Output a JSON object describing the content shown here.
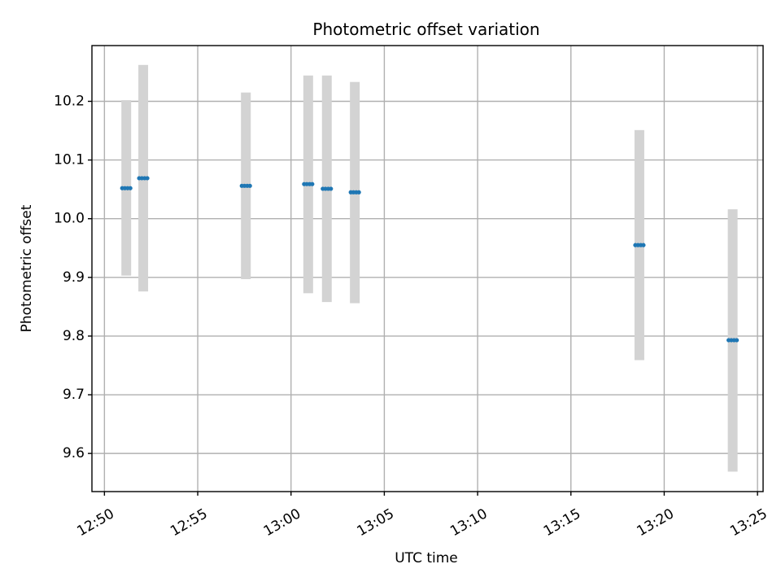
{
  "chart_data": {
    "type": "scatter",
    "title": "Photometric offset variation",
    "xlabel": "UTC time",
    "ylabel": "Photometric offset",
    "x_ticks": [
      "12:50",
      "12:55",
      "13:00",
      "13:05",
      "13:10",
      "13:15",
      "13:20",
      "13:25"
    ],
    "x_tick_minutes": [
      0,
      5,
      10,
      15,
      20,
      25,
      30,
      35
    ],
    "x_range_labels": [
      "12:49:20",
      "13:25:20"
    ],
    "xlim_minutes": [
      -0.67,
      35.3
    ],
    "y_ticks": [
      "9.6",
      "9.7",
      "9.8",
      "9.9",
      "10.0",
      "10.1",
      "10.2"
    ],
    "y_tick_values": [
      9.6,
      9.7,
      9.8,
      9.9,
      10.0,
      10.1,
      10.2
    ],
    "ylim": [
      9.535,
      10.295
    ],
    "grid": true,
    "error_color": "#d3d3d3",
    "point_color": "#1f77b4",
    "series": [
      {
        "points": [
          {
            "time": "12:51:10",
            "minute": 1.17,
            "value": 10.052,
            "low": 9.903,
            "high": 10.202
          },
          {
            "time": "12:52:05",
            "minute": 2.08,
            "value": 10.069,
            "low": 9.876,
            "high": 10.262
          },
          {
            "time": "12:57:35",
            "minute": 7.58,
            "value": 10.056,
            "low": 9.897,
            "high": 10.215
          },
          {
            "time": "13:00:55",
            "minute": 10.92,
            "value": 10.059,
            "low": 9.873,
            "high": 10.244
          },
          {
            "time": "13:01:55",
            "minute": 11.92,
            "value": 10.051,
            "low": 9.858,
            "high": 10.244
          },
          {
            "time": "13:03:25",
            "minute": 13.42,
            "value": 10.045,
            "low": 9.856,
            "high": 10.233
          },
          {
            "time": "13:18:40",
            "minute": 28.67,
            "value": 9.955,
            "low": 9.759,
            "high": 10.151
          },
          {
            "time": "13:23:40",
            "minute": 33.67,
            "value": 9.793,
            "low": 9.569,
            "high": 10.016
          }
        ]
      }
    ]
  }
}
